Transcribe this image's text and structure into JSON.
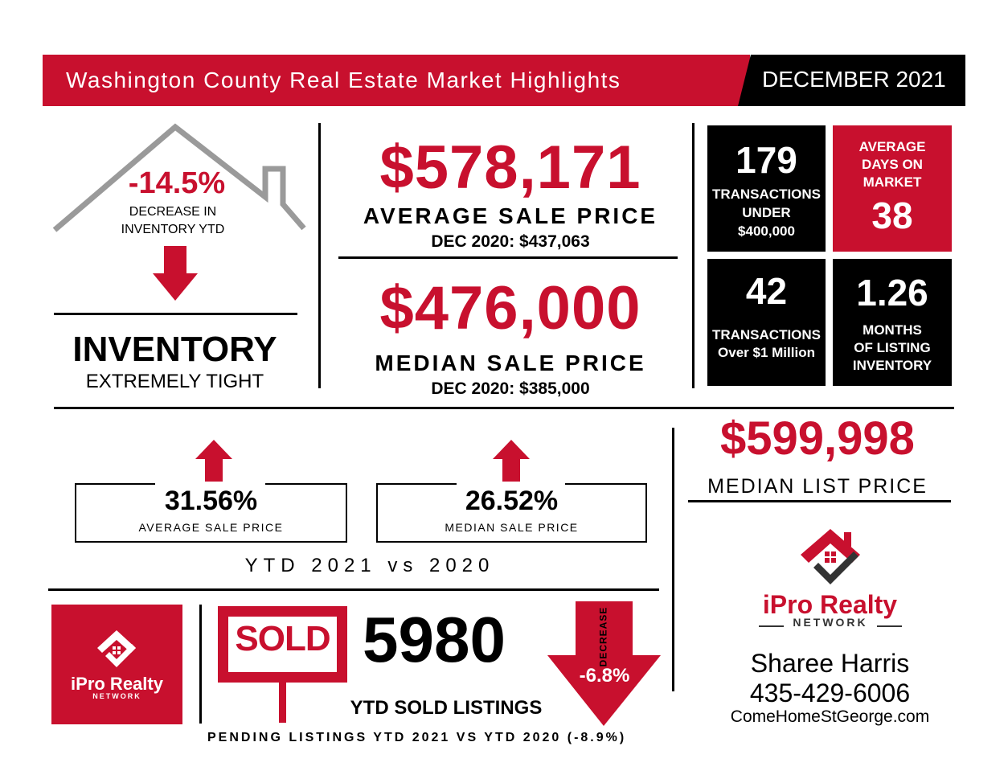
{
  "header": {
    "title": "Washington County Real Estate Market Highlights",
    "date": "DECEMBER 2021"
  },
  "inventory": {
    "change": "-14.5%",
    "change_desc_1": "DECREASE IN",
    "change_desc_2": "INVENTORY YTD",
    "title": "INVENTORY",
    "subtitle": "EXTREMELY TIGHT"
  },
  "avg_sale": {
    "value": "$578,171",
    "label": "AVERAGE SALE PRICE",
    "prior": "DEC 2020: $437,063"
  },
  "median_sale": {
    "value": "$476,000",
    "label": "MEDIAN SALE PRICE",
    "prior": "DEC 2020: $385,000"
  },
  "stats": {
    "under400": {
      "value": "179",
      "l1": "TRANSACTIONS",
      "l2": "UNDER",
      "l3": "$400,000"
    },
    "dom": {
      "l1": "AVERAGE",
      "l2": "DAYS ON",
      "l3": "MARKET",
      "value": "38"
    },
    "over1m": {
      "value": "42",
      "l1": "TRANSACTIONS",
      "l2": "Over $1 Million"
    },
    "months": {
      "value": "1.26",
      "l1": "MONTHS",
      "l2": "OF LISTING",
      "l3": "INVENTORY"
    }
  },
  "ytd": {
    "avg_change": "31.56%",
    "avg_label": "AVERAGE SALE PRICE",
    "median_change": "26.52%",
    "median_label": "MEDIAN SALE PRICE",
    "caption": "YTD 2021 vs 2020"
  },
  "list_price": {
    "value": "$599,998",
    "label": "MEDIAN LIST PRICE"
  },
  "sold": {
    "sign": "SOLD",
    "count": "5980",
    "label": "YTD SOLD LISTINGS",
    "arrow_word": "DECREASE",
    "arrow_value": "-6.8%",
    "pending": "PENDING LISTINGS YTD 2021 VS YTD 2020 (-8.9%)"
  },
  "brand": {
    "name": "iPro Realty",
    "network": "NETWORK"
  },
  "agent": {
    "name": "Sharee Harris",
    "phone": "435-429-6006",
    "website": "ComeHomeStGeorge.com"
  },
  "colors": {
    "accent": "#c8102e",
    "dark": "#000000",
    "grey": "#9a9a9a",
    "logo_dark": "#333333"
  },
  "icons": [
    "house-roof-icon",
    "down-arrow-icon",
    "up-arrow-icon",
    "sold-sign-icon",
    "logo-house-icon"
  ]
}
